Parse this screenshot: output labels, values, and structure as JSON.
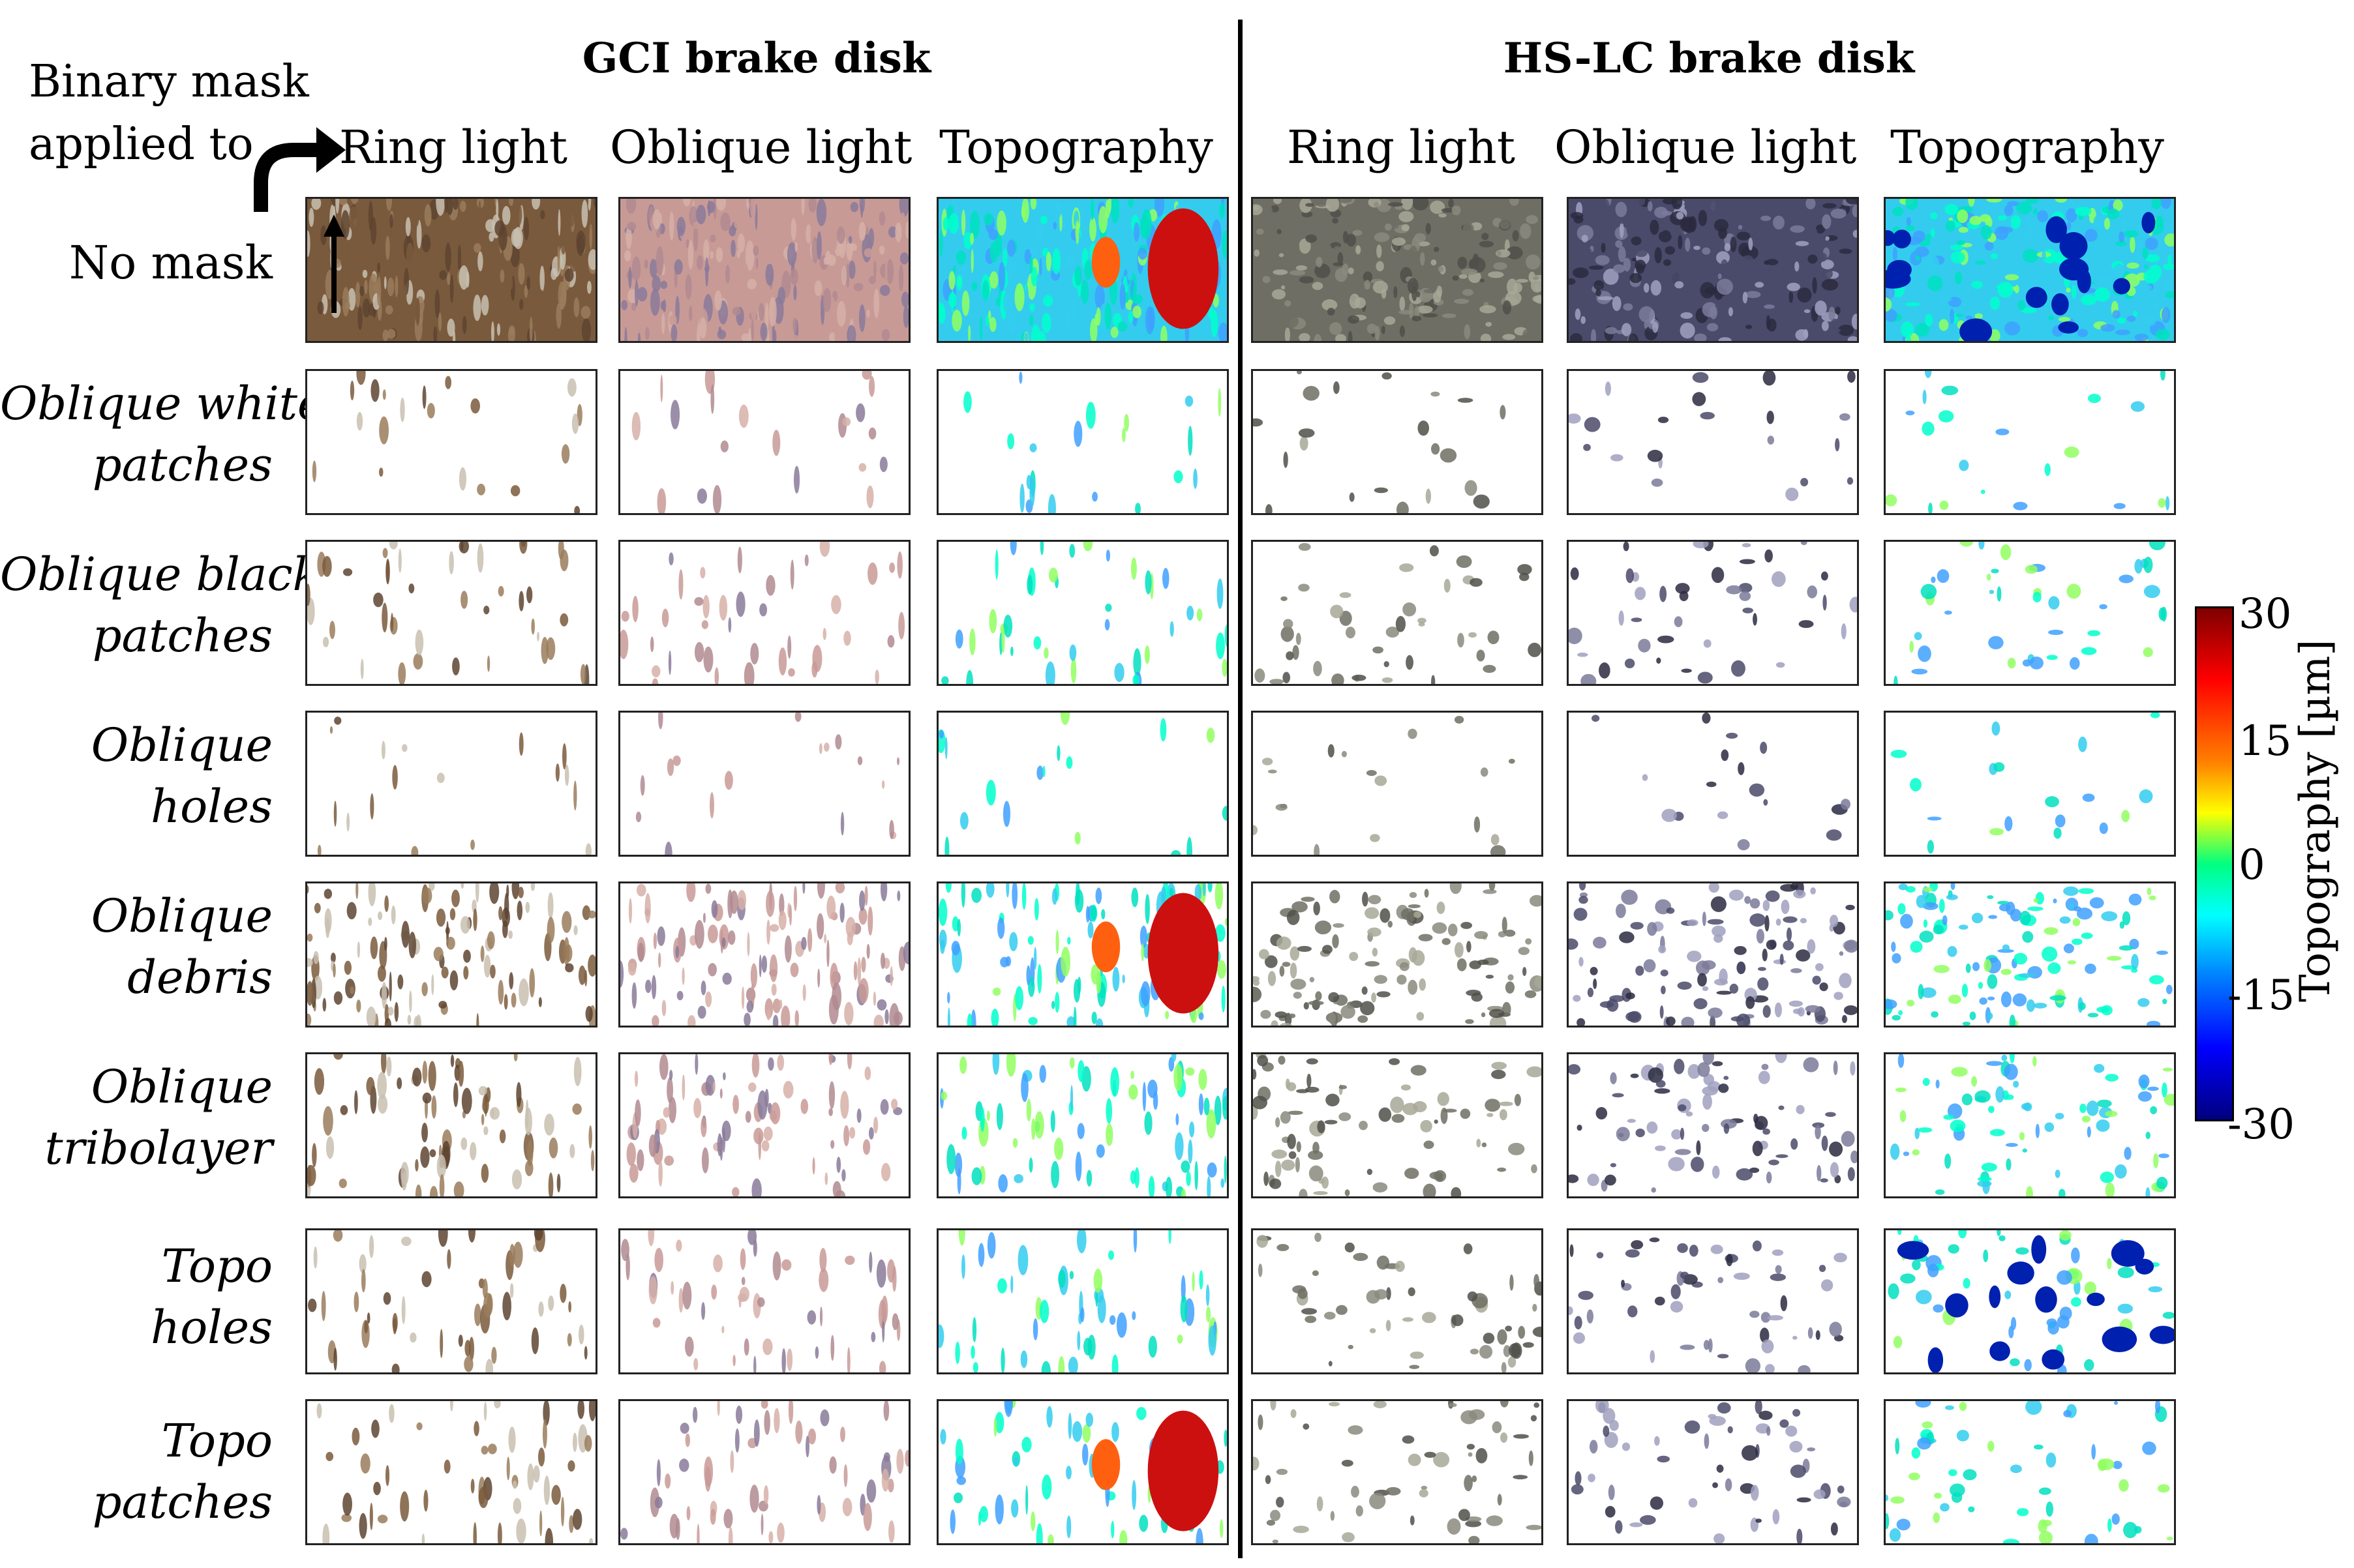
{
  "corner_label": {
    "line1": "Binary mask",
    "line2": "applied to"
  },
  "groups": [
    {
      "title": "GCI brake disk"
    },
    {
      "title": "HS-LC brake disk"
    }
  ],
  "columns": [
    "Ring light",
    "Oblique light",
    "Topography",
    "Ring light",
    "Oblique light",
    "Topography"
  ],
  "rows": [
    {
      "line1": "No mask",
      "line2": "",
      "italic": false
    },
    {
      "line1": "Oblique white",
      "line2": "patches",
      "italic": true
    },
    {
      "line1": "Oblique black",
      "line2": "patches",
      "italic": true
    },
    {
      "line1": "Oblique",
      "line2": "holes",
      "italic": true
    },
    {
      "line1": "Oblique",
      "line2": "debris",
      "italic": true
    },
    {
      "line1": "Oblique",
      "line2": "tribolayer",
      "italic": true
    },
    {
      "line1": "Topo",
      "line2": "holes",
      "italic": true
    },
    {
      "line1": "Topo",
      "line2": "patches",
      "italic": true
    }
  ],
  "colorbar": {
    "title": "Topography [µm]",
    "ticks": [
      "30",
      "15",
      "0",
      "-15",
      "-30"
    ],
    "range": [
      -30,
      30
    ],
    "colormap": "jet"
  },
  "panel_palette": {
    "gci_ring": "#7a5a3c",
    "gci_oblique": "#c89a96",
    "hslc_ring": "#6e6e64",
    "hslc_oblique": "#4a4a6a",
    "topo_background": "#33ccee"
  }
}
